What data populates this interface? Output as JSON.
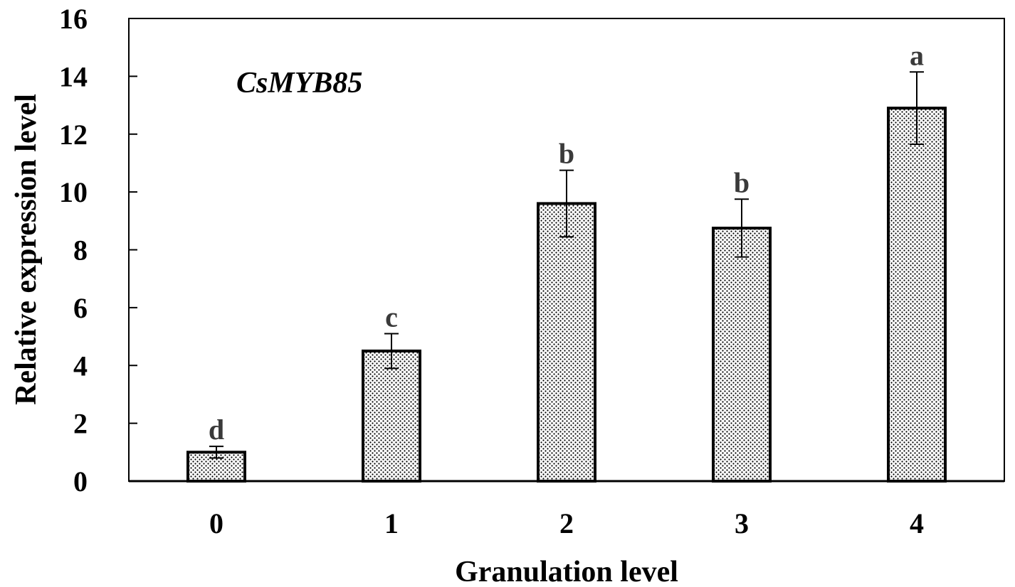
{
  "chart_data": {
    "type": "bar",
    "title": "CsMYB85",
    "xlabel": "Granulation  level",
    "ylabel": "Relative expression level",
    "categories": [
      "0",
      "1",
      "2",
      "3",
      "4"
    ],
    "values": [
      1.0,
      4.5,
      9.6,
      8.75,
      12.9
    ],
    "errors": [
      0.2,
      0.6,
      1.15,
      1.0,
      1.25
    ],
    "significance": [
      "d",
      "c",
      "b",
      "b",
      "a"
    ],
    "ylim": [
      0,
      16
    ],
    "yticks": [
      "0",
      "2",
      "4",
      "6",
      "8",
      "10",
      "12",
      "14",
      "16"
    ],
    "grid": false,
    "legend": "none"
  }
}
